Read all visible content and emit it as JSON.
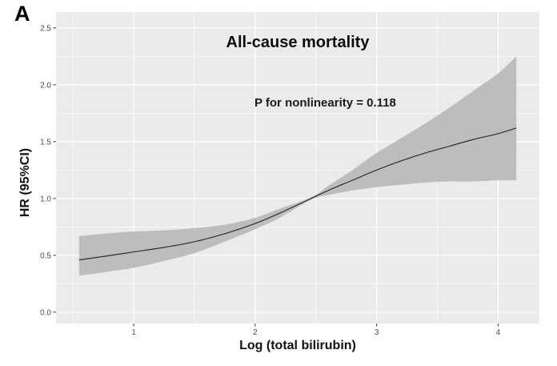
{
  "figure": {
    "panel_label": "A"
  },
  "chart_data": {
    "type": "line",
    "title": "All-cause mortality",
    "annotation": "P for nonlinearity = 0.118",
    "xlabel": "Log (total bilirubin)",
    "ylabel": "HR (95%CI)",
    "x_ticks": [
      1,
      2,
      3,
      4
    ],
    "y_ticks": [
      0.0,
      0.5,
      1.0,
      1.5,
      2.0,
      2.5
    ],
    "x_minor": [
      0.5,
      1.5,
      2.5,
      3.5
    ],
    "y_minor": [
      0.25,
      0.75,
      1.25,
      1.75,
      2.25
    ],
    "xlim": [
      0.36,
      4.34
    ],
    "ylim": [
      -0.1,
      2.64
    ],
    "grid": true,
    "legend": "none",
    "reference_point": {
      "x": 2.46,
      "hr": 1.0
    },
    "x": [
      0.55,
      0.75,
      1.0,
      1.25,
      1.5,
      1.75,
      2.0,
      2.2,
      2.46,
      2.6,
      2.8,
      3.0,
      3.2,
      3.4,
      3.6,
      3.8,
      4.0,
      4.15
    ],
    "series": [
      {
        "name": "HR",
        "role": "line",
        "values": [
          0.46,
          0.49,
          0.53,
          0.57,
          0.62,
          0.69,
          0.78,
          0.87,
          1.0,
          1.07,
          1.16,
          1.25,
          1.33,
          1.4,
          1.46,
          1.52,
          1.57,
          1.62
        ]
      },
      {
        "name": "95% CI upper",
        "role": "ci_upper",
        "values": [
          0.67,
          0.69,
          0.71,
          0.72,
          0.74,
          0.77,
          0.83,
          0.91,
          1.01,
          1.11,
          1.25,
          1.4,
          1.53,
          1.66,
          1.8,
          1.95,
          2.1,
          2.25
        ]
      },
      {
        "name": "95% CI lower",
        "role": "ci_lower",
        "values": [
          0.32,
          0.35,
          0.39,
          0.45,
          0.52,
          0.62,
          0.73,
          0.83,
          0.99,
          1.03,
          1.07,
          1.1,
          1.12,
          1.14,
          1.15,
          1.15,
          1.16,
          1.16
        ]
      }
    ],
    "colors": {
      "panel": "#ebebeb",
      "grid_major": "#ffffff",
      "grid_minor": "#f5f5f5",
      "band": "#bdbdbd",
      "line": "#2e2e2e",
      "tick": "#333333",
      "tick_label": "#4d4d4d"
    }
  }
}
